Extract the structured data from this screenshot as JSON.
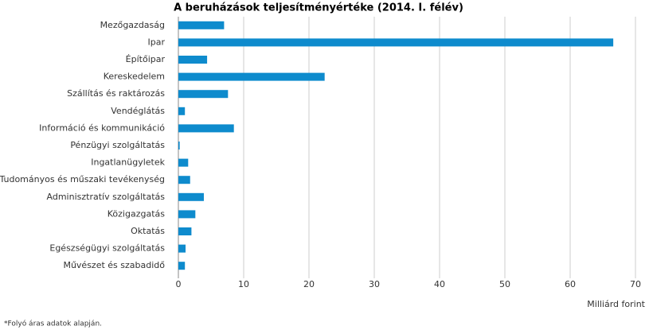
{
  "chart_data": {
    "type": "barh",
    "title": "A beruházások teljesítményértéke (2014. I. félév)",
    "categories": [
      "Mezőgazdaság",
      "Ipar",
      "Építőipar",
      "Kereskedelem",
      "Szállítás és raktározás",
      "Vendéglátás",
      "Információ és kommunikáció",
      "Pénzügyi szolgáltatás",
      "Ingatlanügyletek",
      "Tudományos és műszaki tevékenység",
      "Adminisztratív szolgáltatás",
      "Közigazgatás",
      "Oktatás",
      "Egészségügyi szolgáltatás",
      "Művészet és szabadidő"
    ],
    "values": [
      7.0,
      66.6,
      4.4,
      22.4,
      7.6,
      1.0,
      8.5,
      0.2,
      1.5,
      1.8,
      3.9,
      2.6,
      2.0,
      1.1,
      1.0
    ],
    "color": "#0e8bcd",
    "xlabel": "Milliárd forint",
    "xlim": [
      0,
      70
    ],
    "xticks": [
      0,
      10,
      20,
      30,
      40,
      50,
      60,
      70
    ],
    "grid": true,
    "note": "*Folyó áras adatok alapján."
  }
}
